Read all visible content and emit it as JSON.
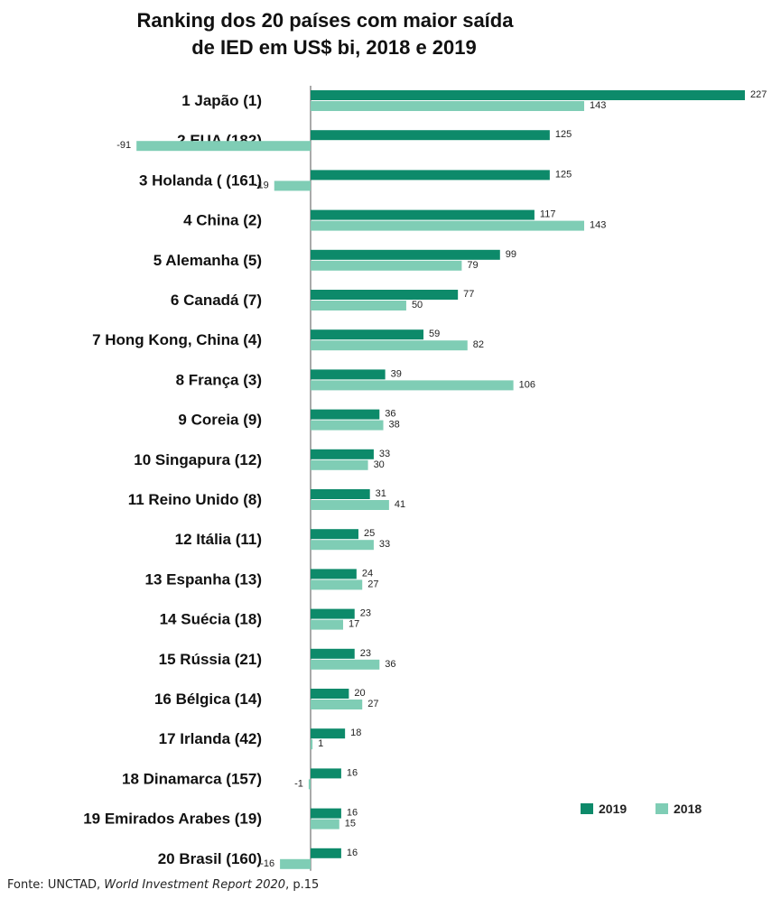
{
  "chart_data": {
    "type": "bar",
    "orientation": "horizontal",
    "title": "Ranking dos 20 países com maior saída",
    "subtitle": "de IED em US$ bi, 2018 e 2019",
    "categories": [
      "1 Japão (1)",
      "2 EUA (182)",
      "3 Holanda ( (161)",
      "4 China (2)",
      "5 Alemanha (5)",
      "6 Canadá (7)",
      "7 Hong Kong, China (4)",
      "8 França (3)",
      "9 Coreia (9)",
      "10 Singapura (12)",
      "11 Reino Unido (8)",
      "12 Itália (11)",
      "13 Espanha (13)",
      "14 Suécia (18)",
      "15 Rússia (21)",
      "16 Bélgica (14)",
      "17 Irlanda (42)",
      "18 Dinamarca (157)",
      "19 Emirados Arabes (19)",
      "20 Brasil (160)"
    ],
    "series": [
      {
        "name": "2019",
        "color": "#0d8a6a",
        "values": [
          227,
          125,
          125,
          117,
          99,
          77,
          59,
          39,
          36,
          33,
          31,
          25,
          24,
          23,
          23,
          20,
          18,
          16,
          16,
          16
        ]
      },
      {
        "name": "2018",
        "color": "#7fcdb5",
        "values": [
          143,
          -91,
          -19,
          143,
          79,
          50,
          82,
          106,
          38,
          30,
          41,
          33,
          27,
          17,
          36,
          27,
          1,
          -1,
          15,
          -16
        ]
      }
    ],
    "legend_position": "bottom-right",
    "grid": false
  },
  "source": {
    "prefix": "Fonte: UNCTAD,",
    "work": "World Investment Report 2020",
    "suffix": ", p.15"
  }
}
